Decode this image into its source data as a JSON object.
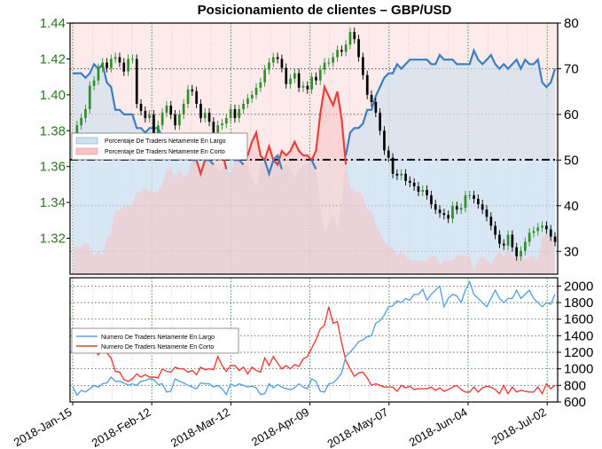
{
  "chart_data": [
    {
      "type": "candlestick+line",
      "title": "Posicionamiento de clientes – GBP/USD",
      "left_axis": {
        "ylim": [
          1.3,
          1.44
        ],
        "ticks": [
          "1.32",
          "1.34",
          "1.36",
          "1.38",
          "1.40",
          "1.42",
          "1.44"
        ]
      },
      "right_axis": {
        "ylim": [
          25,
          80
        ],
        "ticks": [
          "30",
          "40",
          "50",
          "60",
          "70",
          "80"
        ]
      },
      "reference_line": 50,
      "legend": [
        "Porcentaje De Traders Netamente En Largo",
        "Porcentaje De Traders Netamente En Corto"
      ],
      "price_series": {
        "name": "GBP/USD",
        "values": [
          1.371,
          1.383,
          1.387,
          1.392,
          1.405,
          1.408,
          1.415,
          1.418,
          1.415,
          1.42,
          1.421,
          1.418,
          1.413,
          1.42,
          1.42,
          1.395,
          1.391,
          1.387,
          1.389,
          1.378,
          1.383,
          1.39,
          1.394,
          1.389,
          1.383,
          1.389,
          1.395,
          1.403,
          1.402,
          1.395,
          1.387,
          1.39,
          1.385,
          1.379,
          1.383,
          1.384,
          1.387,
          1.392,
          1.387,
          1.392,
          1.395,
          1.398,
          1.4,
          1.404,
          1.407,
          1.414,
          1.418,
          1.421,
          1.42,
          1.415,
          1.406,
          1.409,
          1.412,
          1.404,
          1.405,
          1.403,
          1.41,
          1.408,
          1.414,
          1.418,
          1.418,
          1.421,
          1.425,
          1.424,
          1.428,
          1.435,
          1.431,
          1.421,
          1.411,
          1.4,
          1.396,
          1.39,
          1.38,
          1.369,
          1.365,
          1.356,
          1.355,
          1.356,
          1.352,
          1.351,
          1.349,
          1.346,
          1.347,
          1.344,
          1.339,
          1.336,
          1.334,
          1.333,
          1.331,
          1.338,
          1.336,
          1.337,
          1.344,
          1.344,
          1.342,
          1.339,
          1.336,
          1.332,
          1.327,
          1.322,
          1.317,
          1.316,
          1.322,
          1.315,
          1.31,
          1.313,
          1.318,
          1.323,
          1.324,
          1.326,
          1.327,
          1.325,
          1.321,
          1.318
        ]
      },
      "percent_long_series": {
        "name": "Porcentaje De Traders Netamente En Largo",
        "values": [
          69,
          69,
          69,
          68,
          69,
          71,
          70,
          71,
          67,
          66,
          61,
          61,
          60,
          60,
          60,
          57,
          57,
          56,
          57,
          57,
          57,
          55,
          52,
          52,
          54,
          52,
          54,
          53,
          50,
          50,
          53,
          50,
          50,
          49,
          48,
          48,
          52,
          53,
          50,
          50,
          49,
          49,
          46,
          44,
          49,
          50,
          47,
          50,
          51,
          48,
          49,
          48,
          46,
          48,
          49,
          49,
          50,
          48,
          40,
          34,
          36,
          38,
          35,
          41,
          51,
          56,
          57,
          57,
          58,
          61,
          61,
          64,
          66,
          68,
          69,
          69,
          71,
          70,
          71,
          72,
          72,
          72,
          72,
          72,
          71,
          71,
          73,
          72,
          72,
          72,
          71,
          71,
          71,
          71,
          74,
          72,
          71,
          72,
          73,
          71,
          70,
          71,
          70,
          71,
          72,
          70,
          72,
          71,
          71,
          72,
          67,
          66,
          67,
          70
        ]
      },
      "percent_short_series": {
        "name": "Porcentaje De Traders Netamente En Corto",
        "values": [
          31,
          31,
          31,
          32,
          31,
          29,
          30,
          29,
          33,
          34,
          39,
          39,
          40,
          40,
          40,
          43,
          43,
          44,
          43,
          43,
          43,
          45,
          48,
          48,
          46,
          48,
          46,
          47,
          50,
          50,
          47,
          50,
          50,
          51,
          52,
          52,
          48,
          47,
          50,
          50,
          51,
          51,
          54,
          56,
          51,
          50,
          53,
          50,
          49,
          52,
          51,
          52,
          54,
          52,
          51,
          51,
          50,
          52,
          60,
          66,
          64,
          62,
          65,
          59,
          49,
          44,
          43,
          43,
          42,
          39,
          39,
          36,
          34,
          32,
          31,
          31,
          29,
          30,
          29,
          28,
          28,
          28,
          28,
          28,
          29,
          29,
          27,
          28,
          28,
          28,
          29,
          29,
          29,
          29,
          26,
          28,
          29,
          28,
          27,
          29,
          30,
          29,
          30,
          29,
          28,
          30,
          28,
          29,
          29,
          28,
          33,
          34,
          33,
          30
        ]
      }
    },
    {
      "type": "line",
      "right_axis": {
        "ylim": [
          600,
          2100
        ],
        "ticks": [
          "600",
          "800",
          "1000",
          "1200",
          "1400",
          "1600",
          "1800",
          "2000"
        ]
      },
      "x_tick_labels": [
        "2018-Jan-15",
        "2018-Feb-12",
        "2018-Mar-12",
        "2018-Apr-09",
        "2018-May-07",
        "2018-Jun-04",
        "2018-Jul-02"
      ],
      "legend": [
        "Numero De Traders Netamente En Largo",
        "Numero De Traders Netamente En Corto"
      ],
      "series": [
        {
          "name": "Numero De Traders Netamente En Largo",
          "values": [
            790,
            680,
            740,
            720,
            760,
            800,
            780,
            820,
            830,
            900,
            850,
            850,
            830,
            800,
            820,
            800,
            850,
            860,
            880,
            870,
            810,
            820,
            720,
            730,
            880,
            850,
            830,
            800,
            780,
            760,
            830,
            820,
            820,
            780,
            800,
            760,
            690,
            820,
            790,
            820,
            800,
            780,
            790,
            770,
            690,
            700,
            820,
            770,
            810,
            780,
            760,
            750,
            770,
            820,
            780,
            760,
            880,
            850,
            730,
            720,
            820,
            830,
            880,
            950,
            1150,
            1200,
            1260,
            1330,
            1350,
            1390,
            1400,
            1550,
            1580,
            1650,
            1750,
            1760,
            1820,
            1800,
            1850,
            1830,
            1900,
            1900,
            1960,
            1830,
            1900,
            1950,
            2000,
            1750,
            1850,
            1900,
            1880,
            1800,
            1950,
            2050,
            1900,
            1850,
            1800,
            1750,
            1850,
            1950,
            1850,
            1800,
            1850,
            1850,
            1950,
            1850,
            1900,
            1950,
            1850,
            1800,
            1750,
            1800,
            1780,
            1900
          ]
        },
        {
          "name": "Numero De Traders Netamente En Corto",
          "values": [
            1280,
            1340,
            1310,
            1300,
            1240,
            1250,
            1170,
            1250,
            1190,
            1130,
            970,
            960,
            870,
            850,
            880,
            940,
            900,
            930,
            900,
            900,
            890,
            1000,
            970,
            960,
            1020,
            1000,
            1000,
            960,
            980,
            930,
            1020,
            990,
            1000,
            990,
            1150,
            1040,
            970,
            1040,
            1040,
            980,
            1020,
            940,
            1020,
            980,
            960,
            1130,
            1040,
            1150,
            1070,
            1000,
            1040,
            1000,
            1050,
            1030,
            1120,
            1150,
            1250,
            1350,
            1480,
            1530,
            1750,
            1550,
            1570,
            1320,
            1100,
            1000,
            910,
            950,
            960,
            890,
            800,
            820,
            800,
            780,
            780,
            780,
            730,
            800,
            770,
            790,
            750,
            760,
            760,
            760,
            780,
            740,
            770,
            730,
            750,
            780,
            800,
            750,
            720,
            720,
            780,
            720,
            770,
            790,
            780,
            750,
            700,
            800,
            700,
            780,
            720,
            740,
            730,
            720,
            720,
            780,
            700,
            820,
            760,
            800
          ]
        }
      ]
    }
  ]
}
